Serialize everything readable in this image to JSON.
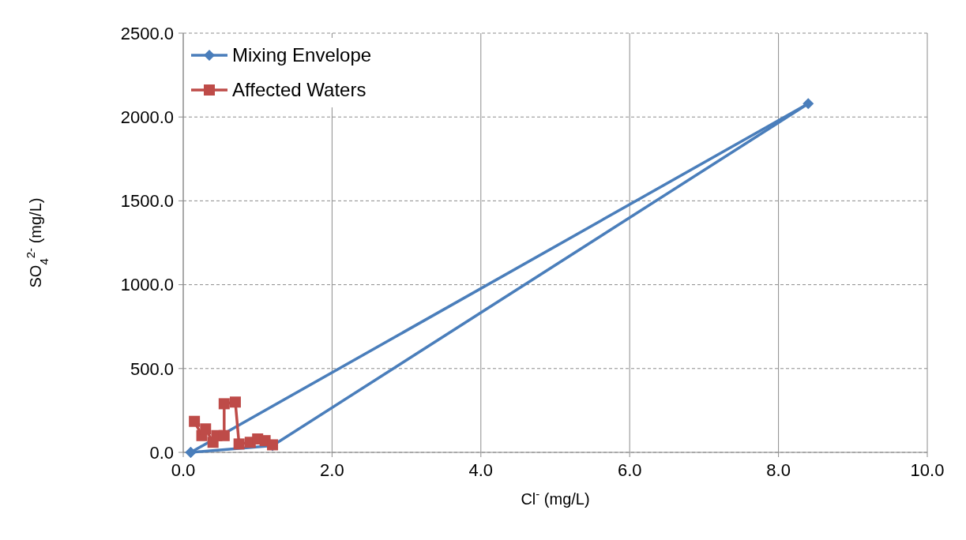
{
  "chart_data": {
    "type": "line",
    "xlabel": "Cl$^{-}$ (mg/L)",
    "ylabel": "SO$_{4}$$^{2-}$ (mg/L)",
    "xlim": [
      0,
      10
    ],
    "ylim": [
      0,
      2500
    ],
    "xticks": [
      {
        "value": 0,
        "label": "0.0"
      },
      {
        "value": 2,
        "label": "2.0"
      },
      {
        "value": 4,
        "label": "4.0"
      },
      {
        "value": 6,
        "label": "6.0"
      },
      {
        "value": 8,
        "label": "8.0"
      },
      {
        "value": 10,
        "label": "10.0"
      }
    ],
    "yticks": [
      {
        "value": 0,
        "label": "0.0"
      },
      {
        "value": 500,
        "label": "500.0"
      },
      {
        "value": 1000,
        "label": "1000.0"
      },
      {
        "value": 1500,
        "label": "1500.0"
      },
      {
        "value": 2000,
        "label": "2000.0"
      },
      {
        "value": 2500,
        "label": "2500.0"
      }
    ],
    "grid": true,
    "legend": "top left",
    "series": [
      {
        "name": "Mixing Envelope",
        "color": "#4a7ebb",
        "marker": "diamond",
        "x": [
          0.1,
          1.2,
          8.4,
          0.1
        ],
        "values": [
          0,
          40,
          2080,
          0
        ]
      },
      {
        "name": "Affected Waters",
        "color": "#be4b48",
        "marker": "square",
        "x": [
          0.15,
          0.25,
          0.3,
          0.4,
          0.45,
          0.55,
          0.55,
          0.7,
          0.75,
          0.9,
          1.0,
          1.1,
          1.2
        ],
        "values": [
          185,
          100,
          140,
          60,
          100,
          100,
          290,
          300,
          50,
          60,
          80,
          70,
          45
        ]
      }
    ]
  }
}
